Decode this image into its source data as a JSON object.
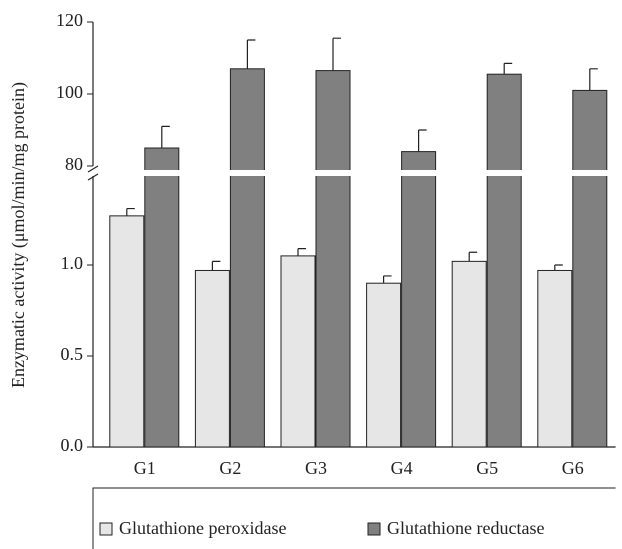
{
  "chart_data": {
    "type": "bar",
    "ylabel": "Enzymatic activity (μmol/min/mg protein)",
    "categories": [
      "G1",
      "G2",
      "G3",
      "G4",
      "G5",
      "G6"
    ],
    "series": [
      {
        "name": "Glutathione peroxidase",
        "color": "#e6e6e6",
        "values": [
          1.27,
          0.97,
          1.05,
          0.9,
          1.02,
          0.97
        ],
        "errors": [
          0.04,
          0.05,
          0.04,
          0.04,
          0.05,
          0.03
        ]
      },
      {
        "name": "Glutathione reductase",
        "color": "#808080",
        "axis": "y2",
        "values": [
          85,
          107,
          106.5,
          84,
          105.5,
          101
        ],
        "errors": [
          6,
          8,
          9,
          6,
          3,
          6
        ]
      }
    ],
    "ylim": [
      0,
      1.5
    ],
    "yticks": [
      {
        "value": 0,
        "label": "0.0"
      },
      {
        "value": 0.5,
        "label": "0.5"
      },
      {
        "value": 1,
        "label": "1.0"
      }
    ],
    "y2lim": [
      80,
      120
    ],
    "y2ticks": [
      80,
      100,
      120
    ],
    "legend": "bottom"
  }
}
